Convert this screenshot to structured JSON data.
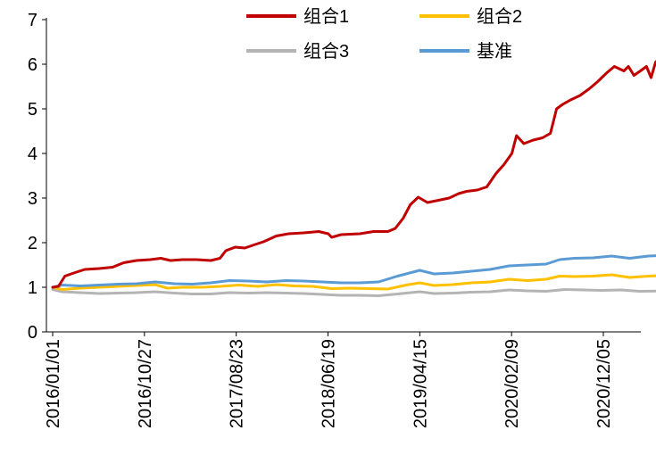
{
  "chart_data": {
    "type": "line",
    "title": "",
    "xlabel": "",
    "ylabel": "",
    "ylim": [
      0,
      7
    ],
    "yticks": [
      0,
      1,
      2,
      3,
      4,
      5,
      6,
      7
    ],
    "grid": false,
    "legend_position": "top",
    "xtick_labels": [
      "2016/01/01",
      "2016/10/27",
      "2017/08/23",
      "2018/06/19",
      "2019/04/15",
      "2020/02/09",
      "2020/12/05"
    ],
    "x_start": "2016/01/01",
    "x_end": "2021/06/30",
    "series": [
      {
        "name": "组合1",
        "color": "#C00000",
        "points": [
          [
            "2016/01/01",
            1.0
          ],
          [
            "2016/01/20",
            1.02
          ],
          [
            "2016/02/10",
            1.25
          ],
          [
            "2016/03/10",
            1.32
          ],
          [
            "2016/04/15",
            1.4
          ],
          [
            "2016/06/01",
            1.42
          ],
          [
            "2016/07/15",
            1.45
          ],
          [
            "2016/08/20",
            1.55
          ],
          [
            "2016/10/01",
            1.6
          ],
          [
            "2016/11/15",
            1.62
          ],
          [
            "2016/12/20",
            1.65
          ],
          [
            "2017/01/20",
            1.6
          ],
          [
            "2017/03/01",
            1.62
          ],
          [
            "2017/04/15",
            1.62
          ],
          [
            "2017/06/01",
            1.6
          ],
          [
            "2017/07/01",
            1.65
          ],
          [
            "2017/07/20",
            1.82
          ],
          [
            "2017/08/20",
            1.9
          ],
          [
            "2017/09/20",
            1.88
          ],
          [
            "2017/10/20",
            1.95
          ],
          [
            "2017/11/20",
            2.02
          ],
          [
            "2018/01/01",
            2.15
          ],
          [
            "2018/02/10",
            2.2
          ],
          [
            "2018/04/01",
            2.22
          ],
          [
            "2018/05/20",
            2.25
          ],
          [
            "2018/06/20",
            2.2
          ],
          [
            "2018/07/01",
            2.12
          ],
          [
            "2018/08/01",
            2.18
          ],
          [
            "2018/10/01",
            2.2
          ],
          [
            "2018/11/15",
            2.25
          ],
          [
            "2019/01/01",
            2.25
          ],
          [
            "2019/01/25",
            2.32
          ],
          [
            "2019/02/20",
            2.55
          ],
          [
            "2019/03/15",
            2.85
          ],
          [
            "2019/04/10",
            3.02
          ],
          [
            "2019/05/10",
            2.9
          ],
          [
            "2019/06/15",
            2.95
          ],
          [
            "2019/07/20",
            3.0
          ],
          [
            "2019/08/20",
            3.1
          ],
          [
            "2019/09/15",
            3.15
          ],
          [
            "2019/10/20",
            3.18
          ],
          [
            "2019/11/20",
            3.25
          ],
          [
            "2019/12/20",
            3.55
          ],
          [
            "2020/01/15",
            3.75
          ],
          [
            "2020/02/10",
            4.0
          ],
          [
            "2020/02/25",
            4.4
          ],
          [
            "2020/03/20",
            4.22
          ],
          [
            "2020/04/20",
            4.3
          ],
          [
            "2020/05/20",
            4.35
          ],
          [
            "2020/06/15",
            4.45
          ],
          [
            "2020/07/05",
            5.0
          ],
          [
            "2020/07/25",
            5.1
          ],
          [
            "2020/08/20",
            5.2
          ],
          [
            "2020/09/20",
            5.3
          ],
          [
            "2020/10/20",
            5.45
          ],
          [
            "2020/11/15",
            5.6
          ],
          [
            "2020/12/15",
            5.8
          ],
          [
            "2021/01/10",
            5.95
          ],
          [
            "2021/02/10",
            5.85
          ],
          [
            "2021/02/25",
            5.95
          ],
          [
            "2021/03/15",
            5.75
          ],
          [
            "2021/04/05",
            5.85
          ],
          [
            "2021/04/25",
            5.95
          ],
          [
            "2021/05/10",
            5.7
          ],
          [
            "2021/05/25",
            6.05
          ],
          [
            "2021/06/10",
            6.15
          ],
          [
            "2021/06/30",
            6.28
          ]
        ]
      },
      {
        "name": "组合2",
        "color": "#FFC000",
        "points": [
          [
            "2016/01/01",
            1.0
          ],
          [
            "2016/02/01",
            0.95
          ],
          [
            "2016/04/01",
            0.98
          ],
          [
            "2016/06/01",
            1.0
          ],
          [
            "2016/08/01",
            1.02
          ],
          [
            "2016/10/01",
            1.04
          ],
          [
            "2016/12/01",
            1.06
          ],
          [
            "2017/01/10",
            0.98
          ],
          [
            "2017/03/01",
            1.0
          ],
          [
            "2017/05/01",
            1.0
          ],
          [
            "2017/07/01",
            1.02
          ],
          [
            "2017/09/01",
            1.05
          ],
          [
            "2017/11/01",
            1.02
          ],
          [
            "2018/01/01",
            1.06
          ],
          [
            "2018/03/01",
            1.03
          ],
          [
            "2018/05/01",
            1.02
          ],
          [
            "2018/07/01",
            0.97
          ],
          [
            "2018/09/01",
            0.98
          ],
          [
            "2018/11/01",
            0.97
          ],
          [
            "2019/01/01",
            0.96
          ],
          [
            "2019/03/01",
            1.05
          ],
          [
            "2019/04/15",
            1.1
          ],
          [
            "2019/06/01",
            1.04
          ],
          [
            "2019/08/01",
            1.06
          ],
          [
            "2019/10/01",
            1.1
          ],
          [
            "2019/12/01",
            1.12
          ],
          [
            "2020/02/01",
            1.18
          ],
          [
            "2020/04/01",
            1.15
          ],
          [
            "2020/06/01",
            1.18
          ],
          [
            "2020/07/15",
            1.25
          ],
          [
            "2020/09/01",
            1.24
          ],
          [
            "2020/11/01",
            1.25
          ],
          [
            "2021/01/01",
            1.28
          ],
          [
            "2021/03/01",
            1.22
          ],
          [
            "2021/05/01",
            1.25
          ],
          [
            "2021/06/30",
            1.27
          ]
        ]
      },
      {
        "name": "组合3",
        "color": "#B4B4B4",
        "points": [
          [
            "2016/01/01",
            0.95
          ],
          [
            "2016/02/01",
            0.9
          ],
          [
            "2016/04/01",
            0.88
          ],
          [
            "2016/06/01",
            0.86
          ],
          [
            "2016/08/01",
            0.87
          ],
          [
            "2016/10/01",
            0.88
          ],
          [
            "2016/12/01",
            0.9
          ],
          [
            "2017/02/01",
            0.87
          ],
          [
            "2017/04/01",
            0.85
          ],
          [
            "2017/06/01",
            0.85
          ],
          [
            "2017/08/01",
            0.88
          ],
          [
            "2017/10/01",
            0.87
          ],
          [
            "2017/12/01",
            0.88
          ],
          [
            "2018/02/01",
            0.87
          ],
          [
            "2018/04/01",
            0.86
          ],
          [
            "2018/06/01",
            0.84
          ],
          [
            "2018/08/01",
            0.82
          ],
          [
            "2018/10/01",
            0.82
          ],
          [
            "2018/12/01",
            0.81
          ],
          [
            "2019/02/01",
            0.85
          ],
          [
            "2019/04/15",
            0.9
          ],
          [
            "2019/06/01",
            0.86
          ],
          [
            "2019/08/01",
            0.87
          ],
          [
            "2019/10/01",
            0.89
          ],
          [
            "2019/12/01",
            0.9
          ],
          [
            "2020/02/01",
            0.94
          ],
          [
            "2020/04/01",
            0.92
          ],
          [
            "2020/06/01",
            0.91
          ],
          [
            "2020/08/01",
            0.95
          ],
          [
            "2020/10/01",
            0.94
          ],
          [
            "2020/12/01",
            0.93
          ],
          [
            "2021/02/01",
            0.94
          ],
          [
            "2021/04/01",
            0.91
          ],
          [
            "2021/06/30",
            0.92
          ]
        ]
      },
      {
        "name": "基准",
        "color": "#5B9BD5",
        "points": [
          [
            "2016/01/01",
            1.0
          ],
          [
            "2016/02/01",
            1.05
          ],
          [
            "2016/04/01",
            1.03
          ],
          [
            "2016/06/01",
            1.05
          ],
          [
            "2016/08/01",
            1.07
          ],
          [
            "2016/10/01",
            1.08
          ],
          [
            "2016/12/01",
            1.12
          ],
          [
            "2017/02/01",
            1.08
          ],
          [
            "2017/04/01",
            1.07
          ],
          [
            "2017/06/01",
            1.1
          ],
          [
            "2017/08/01",
            1.15
          ],
          [
            "2017/10/01",
            1.14
          ],
          [
            "2017/12/01",
            1.12
          ],
          [
            "2018/02/01",
            1.15
          ],
          [
            "2018/04/01",
            1.14
          ],
          [
            "2018/06/01",
            1.12
          ],
          [
            "2018/08/01",
            1.1
          ],
          [
            "2018/10/01",
            1.1
          ],
          [
            "2018/12/01",
            1.12
          ],
          [
            "2019/02/01",
            1.25
          ],
          [
            "2019/04/15",
            1.38
          ],
          [
            "2019/06/01",
            1.3
          ],
          [
            "2019/08/01",
            1.32
          ],
          [
            "2019/10/01",
            1.36
          ],
          [
            "2019/12/01",
            1.4
          ],
          [
            "2020/02/01",
            1.48
          ],
          [
            "2020/04/01",
            1.5
          ],
          [
            "2020/06/01",
            1.52
          ],
          [
            "2020/07/15",
            1.62
          ],
          [
            "2020/09/01",
            1.65
          ],
          [
            "2020/11/01",
            1.66
          ],
          [
            "2021/01/01",
            1.7
          ],
          [
            "2021/03/01",
            1.65
          ],
          [
            "2021/05/01",
            1.7
          ],
          [
            "2021/06/30",
            1.72
          ]
        ]
      }
    ]
  }
}
